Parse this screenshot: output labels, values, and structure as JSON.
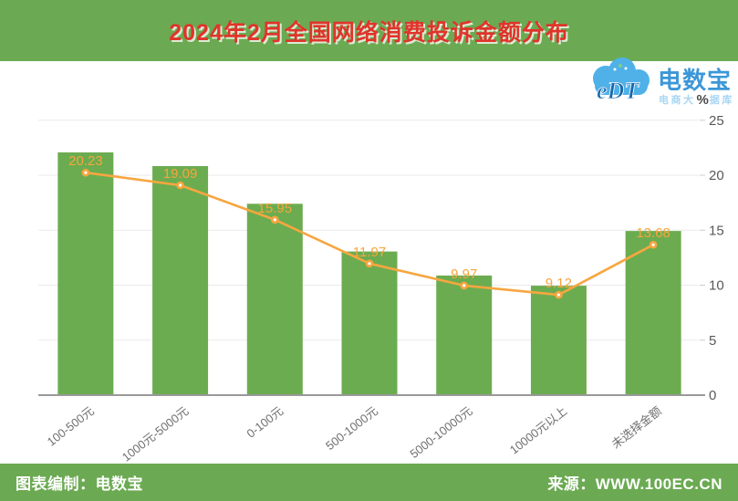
{
  "header": {
    "title": "2024年2月全国网络消费投诉金额分布"
  },
  "logo": {
    "cloud_text": "eDT",
    "brand": "电数宝",
    "subtitle_left": "电商大",
    "subtitle_right": "据库",
    "cloud_color": "#4FB1E8",
    "brand_color": "#3B97D8"
  },
  "y_axis": {
    "unit": "%"
  },
  "chart_data": {
    "type": "bar",
    "overlay": "line",
    "title": "2024年2月全国网络消费投诉金额分布",
    "categories": [
      "100-500元",
      "1000元-5000元",
      "0-100元",
      "500-1000元",
      "5000-10000元",
      "10000元以上",
      "未选择金额"
    ],
    "values": [
      20.23,
      19.09,
      15.95,
      11.97,
      9.97,
      9.12,
      13.68
    ],
    "value_labels": [
      "20.23",
      "19.09",
      "15.95",
      "11.97",
      "9.97",
      "9.12",
      "13.68"
    ],
    "y_ticks": [
      0,
      5,
      10,
      15,
      20,
      25
    ],
    "ylim": [
      0,
      25
    ],
    "ylabel_unit": "%",
    "axis_labels_position": "right",
    "grid": true,
    "legend": false,
    "bar_color": "#6CAC50",
    "line_color": "#F7A640",
    "value_label_color": "#F6A53C",
    "tick_label_color": "#595959",
    "category_label_color": "#6F6F6F",
    "grid_color": "#EAEAEA",
    "axis_line_color": "#999999"
  },
  "footer": {
    "left": "图表编制：电数宝",
    "right": "来源：WWW.100EC.CN"
  }
}
